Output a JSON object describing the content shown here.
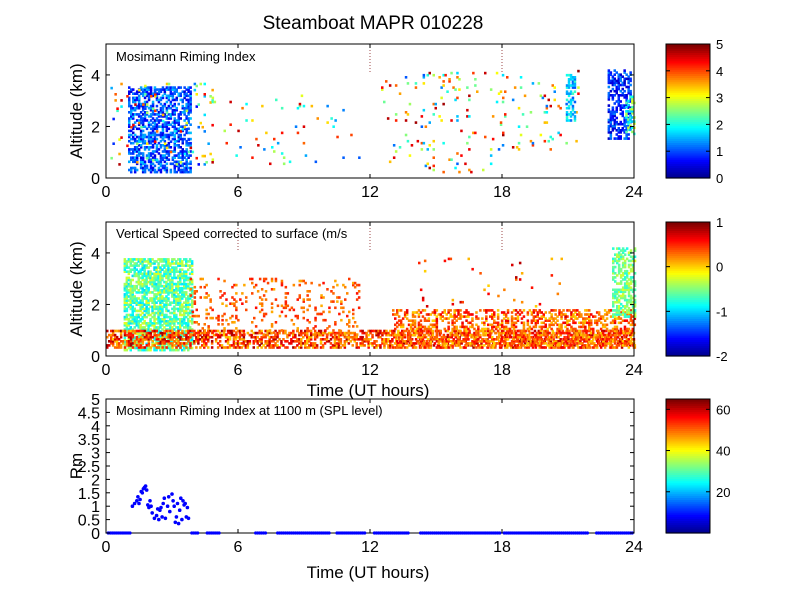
{
  "figure_title": "Steamboat MAPR 010228",
  "colors": {
    "jet": [
      "#00008f",
      "#0000ff",
      "#0080ff",
      "#00ffff",
      "#80ff80",
      "#ffff00",
      "#ff8000",
      "#ff0000",
      "#800000"
    ],
    "point": "#0000ff",
    "frame": "#000000"
  },
  "chart_data": [
    {
      "type": "heatmap",
      "title": "Mosimann Riming Index",
      "xlabel": "",
      "ylabel": "Altitude (km)",
      "xlim": [
        0,
        24
      ],
      "ylim": [
        0,
        5.2
      ],
      "xticks": [
        0,
        6,
        12,
        18,
        24
      ],
      "yticks": [
        0,
        2,
        4
      ],
      "colorbar": {
        "range": [
          0,
          5
        ],
        "ticks": [
          0,
          1,
          2,
          3,
          4,
          5
        ]
      },
      "dotted_markers_x": [
        12,
        18,
        24
      ],
      "regions": [
        {
          "t0": 1.0,
          "t1": 3.8,
          "z0": 0.2,
          "z1": 3.5,
          "v0": 0.4,
          "v1": 1.6,
          "density": 0.55
        },
        {
          "t0": 0.2,
          "t1": 4.8,
          "z0": 0.5,
          "z1": 3.7,
          "v0": 0.5,
          "v1": 4.8,
          "density": 0.05
        },
        {
          "t0": 4.8,
          "t1": 11.5,
          "z0": 0.2,
          "z1": 3.2,
          "v0": 1.0,
          "v1": 4.8,
          "density": 0.02
        },
        {
          "t0": 12.5,
          "t1": 18.0,
          "z0": 0.2,
          "z1": 4.1,
          "v0": 1.0,
          "v1": 4.9,
          "density": 0.035
        },
        {
          "t0": 18.0,
          "t1": 21.5,
          "z0": 1.0,
          "z1": 4.2,
          "v0": 1.0,
          "v1": 4.9,
          "density": 0.03
        },
        {
          "t0": 20.9,
          "t1": 21.3,
          "z0": 2.2,
          "z1": 4.0,
          "v0": 1.0,
          "v1": 2.2,
          "density": 0.5
        },
        {
          "t0": 22.8,
          "t1": 23.8,
          "z0": 1.5,
          "z1": 4.2,
          "v0": 0.3,
          "v1": 1.3,
          "density": 0.55
        },
        {
          "t0": 23.6,
          "t1": 24.0,
          "z0": 1.6,
          "z1": 3.2,
          "v0": 1.5,
          "v1": 3.0,
          "density": 0.5
        }
      ]
    },
    {
      "type": "heatmap",
      "title": "Vertical Speed corrected to surface (m/s",
      "xlabel": "Time (UT hours)",
      "ylabel": "Altitude (km)",
      "xlim": [
        0,
        24
      ],
      "ylim": [
        0,
        5.2
      ],
      "xticks": [
        0,
        6,
        12,
        18,
        24
      ],
      "yticks": [
        0,
        2,
        4
      ],
      "colorbar": {
        "range": [
          -2,
          1
        ],
        "ticks": [
          1,
          0,
          -1,
          -2
        ]
      },
      "dotted_markers_x": [
        6,
        12,
        18,
        24
      ],
      "regions": [
        {
          "t0": 0.8,
          "t1": 3.9,
          "z0": 0.2,
          "z1": 3.8,
          "v0": -1.0,
          "v1": -0.2,
          "density": 0.7
        },
        {
          "t0": 0.0,
          "t1": 24.0,
          "z0": 0.3,
          "z1": 1.0,
          "v0": 0.0,
          "v1": 0.9,
          "density": 0.55
        },
        {
          "t0": 3.8,
          "t1": 11.5,
          "z0": 0.8,
          "z1": 3.0,
          "v0": 0.1,
          "v1": 0.6,
          "density": 0.12
        },
        {
          "t0": 13.0,
          "t1": 24.0,
          "z0": 0.3,
          "z1": 1.8,
          "v0": 0.0,
          "v1": 0.7,
          "density": 0.45
        },
        {
          "t0": 14.0,
          "t1": 21.0,
          "z0": 1.5,
          "z1": 3.8,
          "v0": 0.0,
          "v1": 0.9,
          "density": 0.02
        },
        {
          "t0": 23.0,
          "t1": 24.0,
          "z0": 1.5,
          "z1": 4.2,
          "v0": -0.8,
          "v1": -0.2,
          "density": 0.55
        }
      ]
    },
    {
      "type": "scatter",
      "title": "Mosimann Riming Index at 1100 m (SPL level)",
      "xlabel": "Time (UT hours)",
      "ylabel": "Rm",
      "xlim": [
        0,
        24
      ],
      "ylim": [
        0,
        5
      ],
      "xticks": [
        0,
        6,
        12,
        18,
        24
      ],
      "yticks": [
        0,
        0.5,
        1,
        1.5,
        2,
        2.5,
        3,
        3.5,
        4,
        4.5,
        5
      ],
      "ytick_labels": [
        "0",
        "0.5",
        "1",
        "1.5",
        "2",
        "2.5",
        "3",
        "3.5",
        "4",
        "4.5",
        "5"
      ],
      "colorbar": {
        "range": [
          0,
          65
        ],
        "ticks": [
          60,
          40,
          20
        ]
      },
      "series": [
        {
          "name": "Rm",
          "x": [
            1.2,
            1.3,
            1.4,
            1.45,
            1.5,
            1.55,
            1.6,
            1.65,
            1.7,
            1.75,
            1.8,
            1.85,
            1.9,
            1.95,
            2.0,
            2.05,
            2.1,
            2.2,
            2.3,
            2.35,
            2.4,
            2.45,
            2.5,
            2.55,
            2.6,
            2.65,
            2.7,
            2.8,
            2.85,
            2.9,
            3.0,
            3.05,
            3.1,
            3.15,
            3.2,
            3.25,
            3.3,
            3.35,
            3.4,
            3.45,
            3.5,
            3.55,
            3.6,
            3.65,
            3.7,
            3.75
          ],
          "y": [
            1.0,
            1.1,
            1.2,
            1.35,
            1.1,
            1.25,
            1.55,
            1.5,
            1.65,
            1.7,
            1.75,
            1.6,
            1.05,
            0.95,
            1.2,
            1.0,
            0.75,
            0.55,
            0.65,
            0.9,
            0.5,
            0.85,
            0.95,
            0.6,
            1.1,
            1.3,
            0.55,
            1.0,
            1.35,
            0.8,
            1.45,
            1.2,
            1.0,
            0.4,
            0.6,
            1.1,
            0.35,
            0.85,
            1.3,
            0.5,
            1.2,
            1.05,
            1.1,
            0.6,
            0.95,
            0.55
          ]
        },
        {
          "name": "zero-baseline",
          "x_ranges": [
            [
              0.1,
              1.1
            ],
            [
              3.9,
              4.2
            ],
            [
              4.6,
              5.2
            ],
            [
              6.8,
              7.3
            ],
            [
              7.8,
              10.2
            ],
            [
              10.5,
              11.8
            ],
            [
              12.2,
              13.8
            ],
            [
              14.3,
              17.9
            ],
            [
              18.1,
              21.9
            ],
            [
              22.3,
              24.0
            ]
          ],
          "y": 0
        }
      ]
    }
  ]
}
